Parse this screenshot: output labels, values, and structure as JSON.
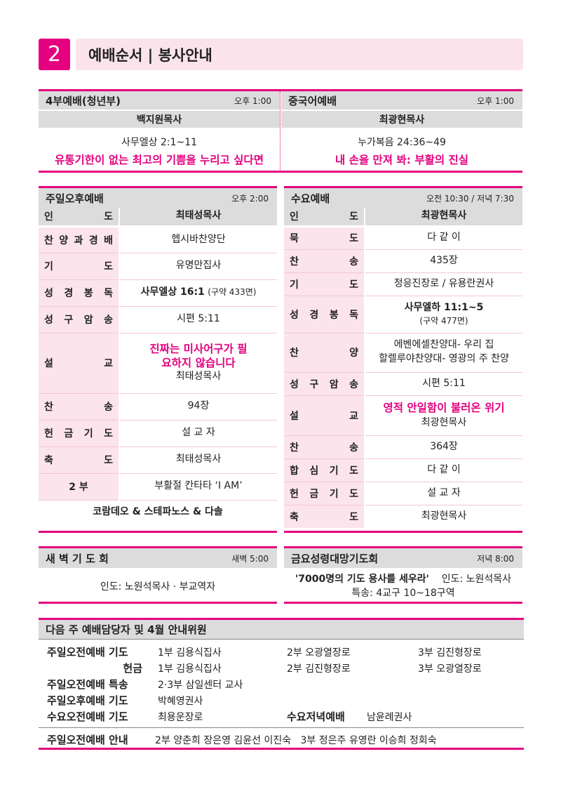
{
  "header": {
    "number": "2",
    "title": "예배순서 | 봉사안내"
  },
  "top": [
    {
      "title": "4부예배(청년부)",
      "time": "오후 1:00",
      "preacher": "백지원목사",
      "scripture": "사무엘상 2:1~11",
      "sermon": "유통기한이 없는 최고의 기쁨을 누리고 싶다면"
    },
    {
      "title": "중국어예배",
      "time": "오후 1:00",
      "preacher": "최광현목사",
      "scripture": "누가복음 24:36~49",
      "sermon": "내 손을 만져 봐: 부활의 진실"
    }
  ],
  "sunday_pm": {
    "title": "주일오후예배",
    "time": "오후 2:00",
    "intro_label": "인 도",
    "intro": "최태성목사",
    "rows": [
      {
        "label": "찬 양 과 경 배",
        "value": "헵시바찬양단"
      },
      {
        "label": "기 도",
        "value": "유명만집사"
      },
      {
        "label": "성 경 봉 독",
        "value": "사무엘상 16:1",
        "note": "(구약 433면)"
      },
      {
        "label": "성 구 암 송",
        "value": "시편 5:11"
      },
      {
        "label": "설 교",
        "sermon": "진짜는 미사어구가 필요하지 않습니다",
        "value": "최태성목사"
      },
      {
        "label": "찬 송",
        "value": "94장"
      },
      {
        "label": "헌 금 기 도",
        "value": "설 교 자"
      },
      {
        "label": "축 도",
        "value": "최태성목사"
      },
      {
        "label": "2 부",
        "value": "부활절 칸타타 ‘I AM’"
      }
    ],
    "footer": "코람데오 & 스테파노스 & 다솔"
  },
  "wednesday": {
    "title": "수요예배",
    "time": "오전 10:30 / 저녁 7:30",
    "intro_label": "인 도",
    "intro": "최광현목사",
    "rows": [
      {
        "label": "묵 도",
        "value": "다 같 이"
      },
      {
        "label": "찬 송",
        "value": "435장"
      },
      {
        "label": "기 도",
        "value": "정응진장로 / 유용란권사"
      },
      {
        "label": "성 경 봉 독",
        "value": "사무엘하 11:1~5",
        "note": "(구약 477면)"
      },
      {
        "label": "찬 양",
        "value": "에벤에셀찬양대- 우리 집",
        "value2": "할렐루야찬양대- 영광의 주 찬양"
      },
      {
        "label": "성 구 암 송",
        "value": "시편 5:11"
      },
      {
        "label": "설 교",
        "sermon": "영적 안일함이 불러온 위기",
        "value": "최광현목사"
      },
      {
        "label": "찬 송",
        "value": "364장"
      },
      {
        "label": "합 심 기 도",
        "value": "다 같 이"
      },
      {
        "label": "헌 금 기 도",
        "value": "설 교 자"
      },
      {
        "label": "축 도",
        "value": "최광현목사"
      }
    ]
  },
  "dawn": {
    "title": "새 벽 기 도 회",
    "time": "새벽 5:00",
    "body": "인도: 노원석목사 · 부교역자"
  },
  "friday": {
    "title": "금요성령대망기도회",
    "time": "저녁 8:00",
    "theme": "'7000명의 기도 용사를 세우라'",
    "leader": "인도: 노원석목사",
    "special": "특송: 4교구 10~18구역"
  },
  "next": {
    "title": "다음 주 예배담당자 및 4월 안내위원",
    "r1": {
      "label": "주일오전예배 기도",
      "a": "1부 김용식집사",
      "b": "2부 오광열장로",
      "c": "3부 김진형장로"
    },
    "r2": {
      "label": "헌금",
      "a": "1부 김용식집사",
      "b": "2부 김진형장로",
      "c": "3부 오광열장로"
    },
    "r3": {
      "label": "주일오전예배 특송",
      "a": "2·3부 삼일센터 교사"
    },
    "r4": {
      "label": "주일오후예배 기도",
      "a": "박혜영권사"
    },
    "r5": {
      "label": "수요오전예배 기도",
      "a": "최용운장로",
      "label2": "수요저녁예배",
      "b": "남윤례권사"
    },
    "r6": {
      "label": "주일오전예배 안내",
      "a": "2부 양춘희 장은영 김윤선 이진숙   3부 정은주 유영란 이승희 정회숙"
    }
  }
}
